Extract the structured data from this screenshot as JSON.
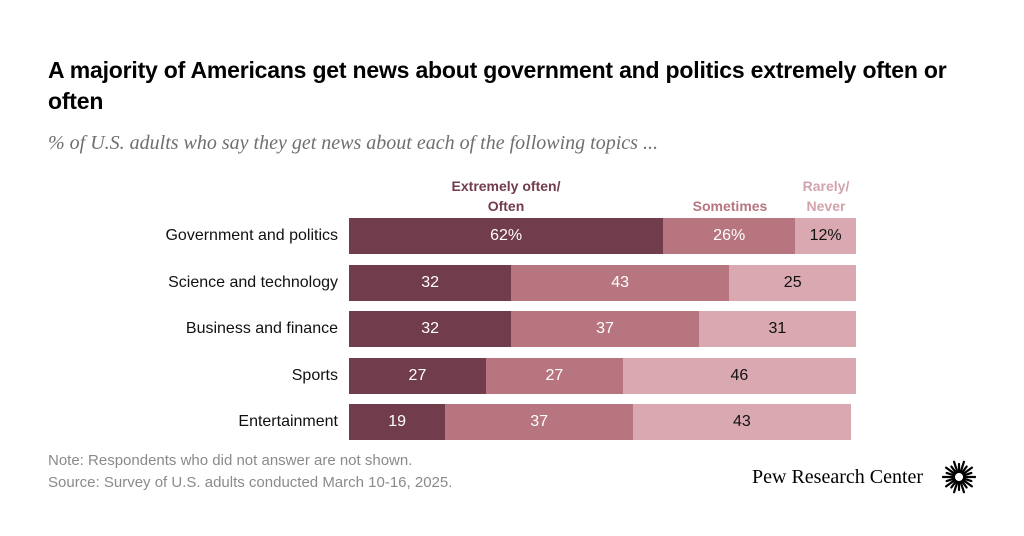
{
  "title": "A majority of Americans get news about government and politics extremely often or often",
  "subtitle": "% of U.S. adults who say they get news about each of the following topics ...",
  "legend": {
    "often": "Extremely often/ Often",
    "sometimes": "Sometimes",
    "rarely": "Rarely/ Never"
  },
  "colors": {
    "often": "#713c4b",
    "sometimes": "#b77580",
    "rarely": "#d9a8b0"
  },
  "chart_data": {
    "type": "bar",
    "orientation": "horizontal",
    "stacked": true,
    "categories": [
      "Government and politics",
      "Science and technology",
      "Business and finance",
      "Sports",
      "Entertainment"
    ],
    "series": [
      {
        "name": "Extremely often/ Often",
        "values": [
          62,
          32,
          32,
          27,
          19
        ]
      },
      {
        "name": "Sometimes",
        "values": [
          26,
          43,
          37,
          27,
          37
        ]
      },
      {
        "name": "Rarely/ Never",
        "values": [
          12,
          25,
          31,
          46,
          43
        ]
      }
    ],
    "labels": [
      [
        "62%",
        "26%",
        "12%"
      ],
      [
        "32",
        "43",
        "25"
      ],
      [
        "32",
        "37",
        "31"
      ],
      [
        "27",
        "27",
        "46"
      ],
      [
        "19",
        "37",
        "43"
      ]
    ],
    "xlim": [
      0,
      100
    ],
    "grid": false
  },
  "note": "Note: Respondents who did not answer are not shown.",
  "source": "Source: Survey of U.S. adults conducted March 10-16, 2025.",
  "brand": "Pew Research Center"
}
